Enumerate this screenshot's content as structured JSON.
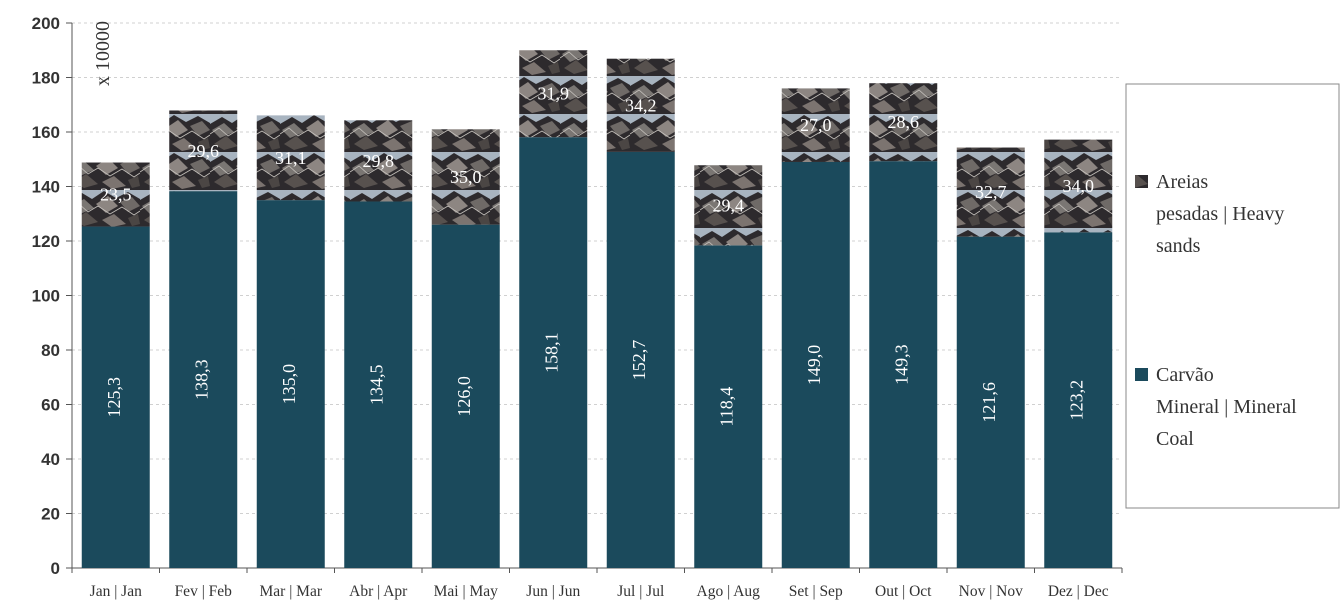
{
  "chart_data": {
    "type": "bar",
    "stacked": true,
    "multiplier_label": "x 10000",
    "categories": [
      "Jan | Jan",
      "Fev | Feb",
      "Mar | Mar",
      "Abr | Apr",
      "Mai | May",
      "Jun | Jun",
      "Jul | Jul",
      "Ago | Aug",
      "Set | Sep",
      "Out | Oct",
      "Nov | Nov",
      "Dez | Dec"
    ],
    "series": [
      {
        "name": "Carvão Mineral | Mineral Coal",
        "color": "#1b4a5c",
        "label_orientation": "vertical",
        "values": [
          125.3,
          138.3,
          135.0,
          134.5,
          126.0,
          158.1,
          152.7,
          118.4,
          149.0,
          149.3,
          121.6,
          123.2
        ],
        "labels": [
          "125,3",
          "138,3",
          "135,0",
          "134,5",
          "126,0",
          "158,1",
          "152,7",
          "118,4",
          "149,0",
          "149,3",
          "121,6",
          "123,2"
        ]
      },
      {
        "name": "Areias pesadas | Heavy sands",
        "fill": "rock-texture",
        "label_orientation": "horizontal",
        "values": [
          23.5,
          29.6,
          31.1,
          29.8,
          35.0,
          31.9,
          34.2,
          29.4,
          27.0,
          28.6,
          32.7,
          34.0
        ],
        "labels": [
          "23,5",
          "29,6",
          "31,1",
          "29,8",
          "35,0",
          "31,9",
          "34,2",
          "29,4",
          "27,0",
          "28,6",
          "32,7",
          "34,0"
        ]
      }
    ],
    "ylim": [
      0,
      200
    ],
    "yticks": [
      "0",
      "20",
      "40",
      "60",
      "80",
      "100",
      "120",
      "140",
      "160",
      "180",
      "200"
    ],
    "grid": true,
    "legend": {
      "placement": "right",
      "items": [
        {
          "lines": [
            "Areias",
            "pesadas | Heavy",
            "sands"
          ],
          "series": 1
        },
        {
          "lines": [
            "Carvão",
            "Mineral | Mineral",
            "Coal"
          ],
          "series": 0
        }
      ]
    },
    "title": "",
    "xlabel": "",
    "ylabel": ""
  }
}
